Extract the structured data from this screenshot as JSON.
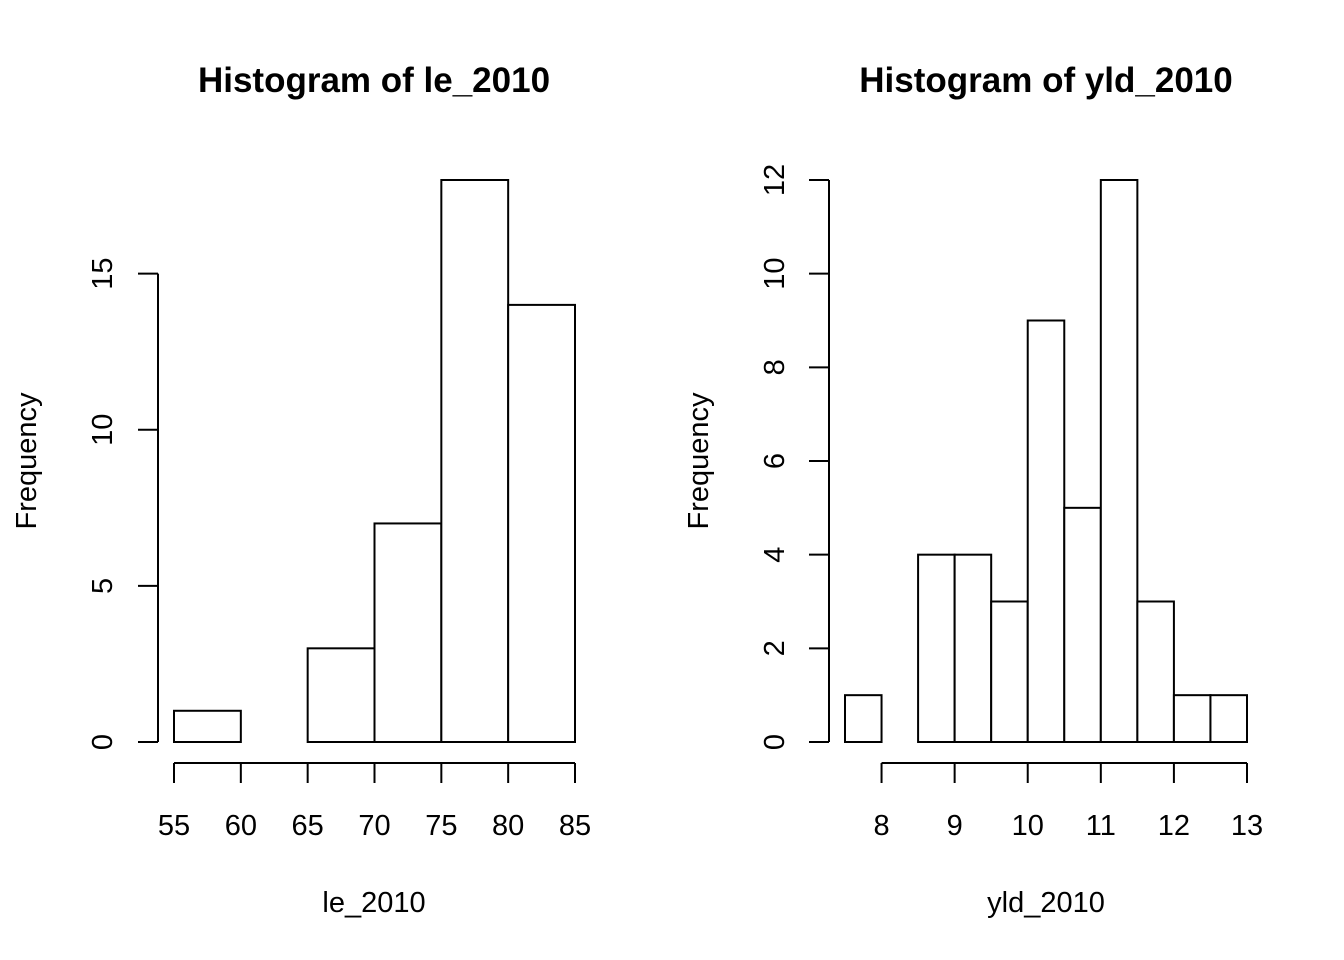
{
  "chart_data": [
    {
      "type": "bar",
      "subtype": "histogram",
      "title": "Histogram of le_2010",
      "xlabel": "le_2010",
      "ylabel": "Frequency",
      "bin_edges": [
        55,
        60,
        65,
        70,
        75,
        80,
        85
      ],
      "values": [
        1,
        0,
        3,
        7,
        18,
        14
      ],
      "xlim": [
        55,
        85
      ],
      "ylim": [
        0,
        18
      ],
      "x_ticks": [
        55,
        60,
        65,
        70,
        75,
        80,
        85
      ],
      "y_ticks": [
        0,
        5,
        10,
        15
      ],
      "grid": false,
      "bar_fill": "#ffffff",
      "bar_stroke": "#000000"
    },
    {
      "type": "bar",
      "subtype": "histogram",
      "title": "Histogram of yld_2010",
      "xlabel": "yld_2010",
      "ylabel": "Frequency",
      "bin_edges": [
        7.5,
        8,
        8.5,
        9,
        9.5,
        10,
        10.5,
        11,
        11.5,
        12,
        12.5,
        13
      ],
      "values": [
        1,
        0,
        4,
        4,
        3,
        9,
        5,
        12,
        3,
        1,
        1
      ],
      "xlim": [
        7.5,
        13
      ],
      "ylim": [
        0,
        12
      ],
      "x_ticks": [
        8,
        9,
        10,
        11,
        12,
        13
      ],
      "y_ticks": [
        0,
        2,
        4,
        6,
        8,
        10,
        12
      ],
      "grid": false,
      "bar_fill": "#ffffff",
      "bar_stroke": "#000000"
    }
  ]
}
